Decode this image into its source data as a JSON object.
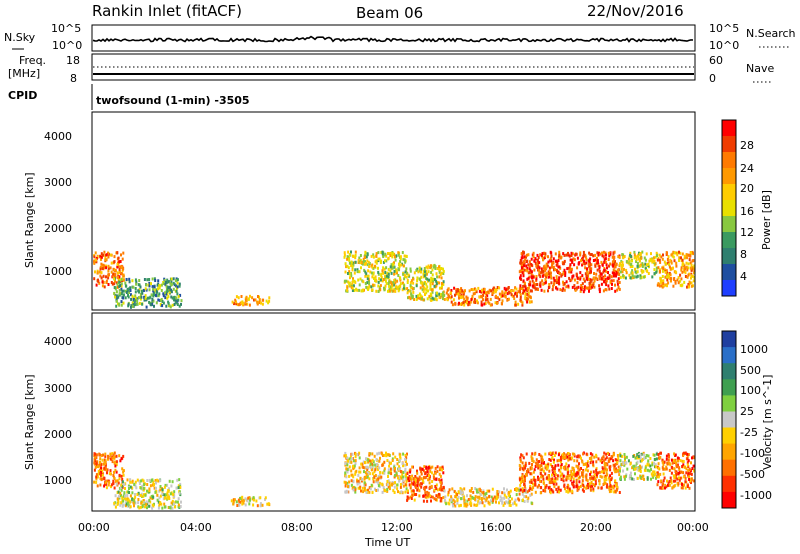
{
  "header": {
    "station": "Rankin Inlet (fitACF)",
    "beam": "Beam 06",
    "date": "22/Nov/2016"
  },
  "noise_panel": {
    "left_label": "N.Sky",
    "left_ticks": [
      "10^5",
      "10^0"
    ],
    "right_label": "N.Search",
    "right_ticks": [
      "10^5",
      "10^0"
    ]
  },
  "freq_panel": {
    "left_label_1": "Freq.",
    "left_label_2": "[MHz]",
    "left_ticks": [
      "18",
      "8"
    ],
    "right_label": "Nave",
    "right_ticks": [
      "60",
      "0"
    ]
  },
  "cpid_panel": {
    "label": "CPID",
    "mode_text": "twofsound (1-min)  -3505"
  },
  "power_panel": {
    "ylabel": "Slant Range [km]",
    "yticks": [
      "4000",
      "3000",
      "2000",
      "1000"
    ],
    "colorbar_label": "Power [dB]",
    "colorbar_ticks": [
      "28",
      "24",
      "20",
      "16",
      "12",
      "8",
      "4"
    ],
    "colorbar_colors": [
      "#ff0000",
      "#f03c00",
      "#ff7a00",
      "#ff9900",
      "#ffcc00",
      "#e8e000",
      "#88c840",
      "#3a9a60",
      "#2f7f6f",
      "#1f4fa0",
      "#1f3fff"
    ]
  },
  "velocity_panel": {
    "ylabel": "Slant Range [km]",
    "yticks": [
      "4000",
      "3000",
      "2000",
      "1000"
    ],
    "colorbar_label": "Velocity [m s^-1]",
    "colorbar_ticks": [
      "1000",
      "500",
      "100",
      "25",
      "-25",
      "-100",
      "-500",
      "-1000"
    ],
    "colorbar_colors": [
      "#1f3fa0",
      "#2a6fc8",
      "#2f7f6f",
      "#3f9f50",
      "#7fd040",
      "#c8c8c8",
      "#ffd000",
      "#ffa500",
      "#ff7000",
      "#ff3000",
      "#ff0000"
    ]
  },
  "xaxis": {
    "label": "Time UT",
    "ticks": [
      "00:00",
      "04:00",
      "08:00",
      "12:00",
      "16:00",
      "20:00",
      "00:00"
    ]
  },
  "chart_data": {
    "type": "heatmap",
    "title": "Rankin Inlet (fitACF)",
    "subtitle": "Beam 06 22/Nov/2016",
    "xlabel": "Time UT",
    "ylabel": "Slant Range [km]",
    "xlim_hours": [
      0,
      24
    ],
    "ylim_km": [
      180,
      4600
    ],
    "grid": false,
    "power_scale_db": [
      0,
      30
    ],
    "velocity_scale_ms": [
      -1000,
      1000
    ],
    "scatter_regions": [
      {
        "t_start": 0.0,
        "t_end": 1.2,
        "r_start": 700,
        "r_end": 1500,
        "power_db": 24,
        "velocity": -500
      },
      {
        "t_start": 0.8,
        "t_end": 3.5,
        "r_start": 250,
        "r_end": 900,
        "power_db": 10,
        "velocity": 100
      },
      {
        "t_start": 5.5,
        "t_end": 7.0,
        "r_start": 300,
        "r_end": 500,
        "power_db": 20,
        "velocity": -100
      },
      {
        "t_start": 10.0,
        "t_end": 12.5,
        "r_start": 600,
        "r_end": 1500,
        "power_db": 14,
        "velocity": -100
      },
      {
        "t_start": 12.5,
        "t_end": 14.0,
        "r_start": 400,
        "r_end": 1200,
        "power_db": 16,
        "velocity": -500
      },
      {
        "t_start": 14.0,
        "t_end": 17.5,
        "r_start": 300,
        "r_end": 700,
        "power_db": 24,
        "velocity": -100
      },
      {
        "t_start": 17.0,
        "t_end": 21.0,
        "r_start": 600,
        "r_end": 1500,
        "power_db": 26,
        "velocity": -500
      },
      {
        "t_start": 21.0,
        "t_end": 22.5,
        "r_start": 900,
        "r_end": 1500,
        "power_db": 14,
        "velocity": 100
      },
      {
        "t_start": 22.5,
        "t_end": 24.0,
        "r_start": 700,
        "r_end": 1500,
        "power_db": 20,
        "velocity": -500
      }
    ]
  }
}
